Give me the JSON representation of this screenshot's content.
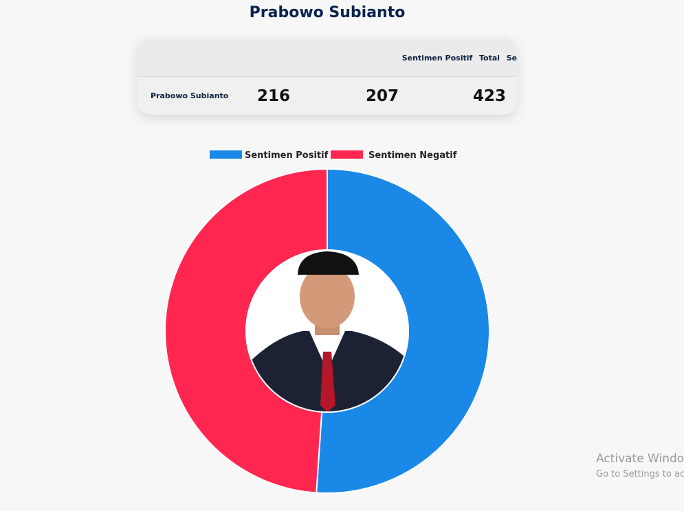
{
  "header": {
    "title": "Prabowo Subianto"
  },
  "table": {
    "columns": [
      "Sentimen Positif",
      "Sentimen Negatif",
      "Total"
    ],
    "rows": [
      [
        "Prabowo Subianto",
        216,
        207,
        423
      ]
    ]
  },
  "chart_data": {
    "type": "doughnut",
    "categories": [
      "Sentimen Positif",
      "Sentimen Negatif"
    ],
    "values": [
      216,
      207
    ],
    "colors": [
      "#1a88e6",
      "#ff2750"
    ],
    "legend": "top"
  },
  "watermark": {
    "line1": "Activate Windo",
    "line2": "Go to Settings to ac"
  }
}
